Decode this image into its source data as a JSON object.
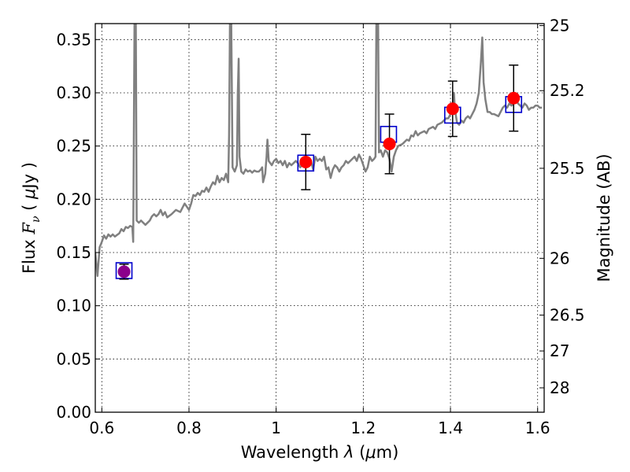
{
  "chart_data": {
    "type": "line",
    "xlabel": "Wavelength  λ (μm)",
    "ylabel": "Flux  F_ν  ( μJy )",
    "ylabel_right": "Magnitude (AB)",
    "xlim": [
      0.585,
      1.615
    ],
    "ylim": [
      0.0,
      0.365
    ],
    "grid": true,
    "x_ticks": [
      {
        "value": 0.6,
        "label": "0.6"
      },
      {
        "value": 0.8,
        "label": "0.8"
      },
      {
        "value": 1.0,
        "label": "1"
      },
      {
        "value": 1.2,
        "label": "1.2"
      },
      {
        "value": 1.4,
        "label": "1.4"
      },
      {
        "value": 1.6,
        "label": "1.6"
      }
    ],
    "y_ticks": [
      {
        "value": 0.0,
        "label": "0.00"
      },
      {
        "value": 0.05,
        "label": "0.05"
      },
      {
        "value": 0.1,
        "label": "0.10"
      },
      {
        "value": 0.15,
        "label": "0.15"
      },
      {
        "value": 0.2,
        "label": "0.20"
      },
      {
        "value": 0.25,
        "label": "0.25"
      },
      {
        "value": 0.3,
        "label": "0.30"
      },
      {
        "value": 0.35,
        "label": "0.35"
      }
    ],
    "right_ticks": [
      {
        "mag": 25,
        "label": "25"
      },
      {
        "mag": 25.2,
        "label": "25.2"
      },
      {
        "mag": 25.5,
        "label": "25.5"
      },
      {
        "mag": 26,
        "label": "26"
      },
      {
        "mag": 26.5,
        "label": "26.5"
      },
      {
        "mag": 27,
        "label": "27"
      },
      {
        "mag": 28,
        "label": "28"
      }
    ],
    "template_spectrum": {
      "color": "#808080",
      "points": [
        [
          0.585,
          0.15
        ],
        [
          0.59,
          0.128
        ],
        [
          0.595,
          0.155
        ],
        [
          0.6,
          0.16
        ],
        [
          0.605,
          0.166
        ],
        [
          0.61,
          0.163
        ],
        [
          0.615,
          0.167
        ],
        [
          0.62,
          0.165
        ],
        [
          0.625,
          0.167
        ],
        [
          0.63,
          0.165
        ],
        [
          0.64,
          0.168
        ],
        [
          0.645,
          0.172
        ],
        [
          0.65,
          0.17
        ],
        [
          0.655,
          0.174
        ],
        [
          0.66,
          0.173
        ],
        [
          0.665,
          0.175
        ],
        [
          0.67,
          0.174
        ],
        [
          0.672,
          0.16
        ],
        [
          0.675,
          0.365
        ],
        [
          0.678,
          0.365
        ],
        [
          0.68,
          0.18
        ],
        [
          0.685,
          0.178
        ],
        [
          0.69,
          0.18
        ],
        [
          0.695,
          0.178
        ],
        [
          0.7,
          0.176
        ],
        [
          0.71,
          0.18
        ],
        [
          0.715,
          0.184
        ],
        [
          0.72,
          0.186
        ],
        [
          0.725,
          0.184
        ],
        [
          0.73,
          0.186
        ],
        [
          0.735,
          0.19
        ],
        [
          0.74,
          0.185
        ],
        [
          0.745,
          0.188
        ],
        [
          0.75,
          0.183
        ],
        [
          0.76,
          0.186
        ],
        [
          0.77,
          0.19
        ],
        [
          0.78,
          0.188
        ],
        [
          0.79,
          0.196
        ],
        [
          0.8,
          0.19
        ],
        [
          0.805,
          0.196
        ],
        [
          0.81,
          0.204
        ],
        [
          0.815,
          0.203
        ],
        [
          0.82,
          0.206
        ],
        [
          0.825,
          0.204
        ],
        [
          0.83,
          0.208
        ],
        [
          0.835,
          0.207
        ],
        [
          0.84,
          0.211
        ],
        [
          0.845,
          0.207
        ],
        [
          0.85,
          0.212
        ],
        [
          0.855,
          0.216
        ],
        [
          0.86,
          0.214
        ],
        [
          0.865,
          0.222
        ],
        [
          0.87,
          0.216
        ],
        [
          0.875,
          0.22
        ],
        [
          0.88,
          0.218
        ],
        [
          0.885,
          0.224
        ],
        [
          0.89,
          0.216
        ],
        [
          0.892,
          0.26
        ],
        [
          0.894,
          0.365
        ],
        [
          0.897,
          0.365
        ],
        [
          0.9,
          0.23
        ],
        [
          0.905,
          0.226
        ],
        [
          0.91,
          0.232
        ],
        [
          0.912,
          0.3
        ],
        [
          0.914,
          0.332
        ],
        [
          0.916,
          0.24
        ],
        [
          0.92,
          0.226
        ],
        [
          0.925,
          0.224
        ],
        [
          0.93,
          0.228
        ],
        [
          0.935,
          0.226
        ],
        [
          0.94,
          0.227
        ],
        [
          0.945,
          0.225
        ],
        [
          0.95,
          0.227
        ],
        [
          0.955,
          0.226
        ],
        [
          0.96,
          0.226
        ],
        [
          0.965,
          0.228
        ],
        [
          0.968,
          0.23
        ],
        [
          0.97,
          0.216
        ],
        [
          0.975,
          0.224
        ],
        [
          0.978,
          0.24
        ],
        [
          0.98,
          0.256
        ],
        [
          0.983,
          0.236
        ],
        [
          0.99,
          0.232
        ],
        [
          0.995,
          0.236
        ],
        [
          1.0,
          0.238
        ],
        [
          1.005,
          0.234
        ],
        [
          1.01,
          0.236
        ],
        [
          1.015,
          0.232
        ],
        [
          1.02,
          0.236
        ],
        [
          1.025,
          0.23
        ],
        [
          1.03,
          0.234
        ],
        [
          1.035,
          0.232
        ],
        [
          1.04,
          0.234
        ],
        [
          1.045,
          0.236
        ],
        [
          1.05,
          0.234
        ],
        [
          1.055,
          0.23
        ],
        [
          1.06,
          0.232
        ],
        [
          1.065,
          0.236
        ],
        [
          1.07,
          0.234
        ],
        [
          1.08,
          0.236
        ],
        [
          1.085,
          0.228
        ],
        [
          1.09,
          0.24
        ],
        [
          1.095,
          0.236
        ],
        [
          1.1,
          0.238
        ],
        [
          1.105,
          0.236
        ],
        [
          1.11,
          0.24
        ],
        [
          1.115,
          0.228
        ],
        [
          1.12,
          0.23
        ],
        [
          1.125,
          0.22
        ],
        [
          1.13,
          0.228
        ],
        [
          1.135,
          0.232
        ],
        [
          1.14,
          0.23
        ],
        [
          1.145,
          0.226
        ],
        [
          1.15,
          0.23
        ],
        [
          1.155,
          0.232
        ],
        [
          1.16,
          0.236
        ],
        [
          1.165,
          0.234
        ],
        [
          1.17,
          0.236
        ],
        [
          1.175,
          0.238
        ],
        [
          1.18,
          0.24
        ],
        [
          1.185,
          0.236
        ],
        [
          1.19,
          0.242
        ],
        [
          1.195,
          0.238
        ],
        [
          1.2,
          0.232
        ],
        [
          1.205,
          0.226
        ],
        [
          1.21,
          0.23
        ],
        [
          1.215,
          0.24
        ],
        [
          1.22,
          0.236
        ],
        [
          1.225,
          0.238
        ],
        [
          1.228,
          0.24
        ],
        [
          1.23,
          0.365
        ],
        [
          1.234,
          0.365
        ],
        [
          1.236,
          0.244
        ],
        [
          1.24,
          0.246
        ],
        [
          1.245,
          0.24
        ],
        [
          1.25,
          0.246
        ],
        [
          1.255,
          0.244
        ],
        [
          1.26,
          0.238
        ],
        [
          1.265,
          0.226
        ],
        [
          1.27,
          0.24
        ],
        [
          1.275,
          0.246
        ],
        [
          1.28,
          0.25
        ],
        [
          1.29,
          0.252
        ],
        [
          1.3,
          0.256
        ],
        [
          1.305,
          0.255
        ],
        [
          1.31,
          0.26
        ],
        [
          1.315,
          0.259
        ],
        [
          1.32,
          0.264
        ],
        [
          1.325,
          0.26
        ],
        [
          1.33,
          0.262
        ],
        [
          1.34,
          0.264
        ],
        [
          1.345,
          0.262
        ],
        [
          1.35,
          0.266
        ],
        [
          1.36,
          0.268
        ],
        [
          1.365,
          0.266
        ],
        [
          1.37,
          0.27
        ],
        [
          1.38,
          0.272
        ],
        [
          1.39,
          0.276
        ],
        [
          1.395,
          0.276
        ],
        [
          1.4,
          0.28
        ],
        [
          1.405,
          0.283
        ],
        [
          1.408,
          0.3
        ],
        [
          1.41,
          0.285
        ],
        [
          1.415,
          0.272
        ],
        [
          1.42,
          0.27
        ],
        [
          1.425,
          0.274
        ],
        [
          1.43,
          0.272
        ],
        [
          1.435,
          0.276
        ],
        [
          1.44,
          0.278
        ],
        [
          1.445,
          0.276
        ],
        [
          1.45,
          0.28
        ],
        [
          1.455,
          0.284
        ],
        [
          1.46,
          0.29
        ],
        [
          1.465,
          0.3
        ],
        [
          1.47,
          0.33
        ],
        [
          1.473,
          0.352
        ],
        [
          1.476,
          0.31
        ],
        [
          1.48,
          0.294
        ],
        [
          1.485,
          0.282
        ],
        [
          1.49,
          0.282
        ],
        [
          1.495,
          0.28
        ],
        [
          1.5,
          0.28
        ],
        [
          1.51,
          0.278
        ],
        [
          1.515,
          0.282
        ],
        [
          1.52,
          0.286
        ],
        [
          1.525,
          0.288
        ],
        [
          1.53,
          0.286
        ],
        [
          1.535,
          0.29
        ],
        [
          1.54,
          0.288
        ],
        [
          1.545,
          0.29
        ],
        [
          1.55,
          0.294
        ],
        [
          1.555,
          0.29
        ],
        [
          1.56,
          0.288
        ],
        [
          1.565,
          0.286
        ],
        [
          1.57,
          0.29
        ],
        [
          1.575,
          0.288
        ],
        [
          1.58,
          0.284
        ],
        [
          1.585,
          0.286
        ],
        [
          1.59,
          0.286
        ],
        [
          1.595,
          0.288
        ],
        [
          1.6,
          0.288
        ],
        [
          1.605,
          0.286
        ],
        [
          1.61,
          0.286
        ]
      ]
    },
    "model_boxes": {
      "color": "#0000cc",
      "points": [
        {
          "x": 0.651,
          "y": 0.133
        },
        {
          "x": 1.068,
          "y": 0.234
        },
        {
          "x": 1.258,
          "y": 0.261
        },
        {
          "x": 1.405,
          "y": 0.279
        },
        {
          "x": 1.545,
          "y": 0.289
        }
      ]
    },
    "observed_points": [
      {
        "x": 0.651,
        "y": 0.132,
        "yerr": 0.007,
        "color": "#8b008b"
      },
      {
        "x": 1.068,
        "y": 0.235,
        "yerr": 0.026,
        "color": "#ff0000"
      },
      {
        "x": 1.26,
        "y": 0.252,
        "yerr": 0.028,
        "color": "#ff0000"
      },
      {
        "x": 1.405,
        "y": 0.285,
        "yerr": 0.026,
        "color": "#ff0000"
      },
      {
        "x": 1.545,
        "y": 0.295,
        "yerr": 0.031,
        "color": "#ff0000"
      }
    ]
  }
}
